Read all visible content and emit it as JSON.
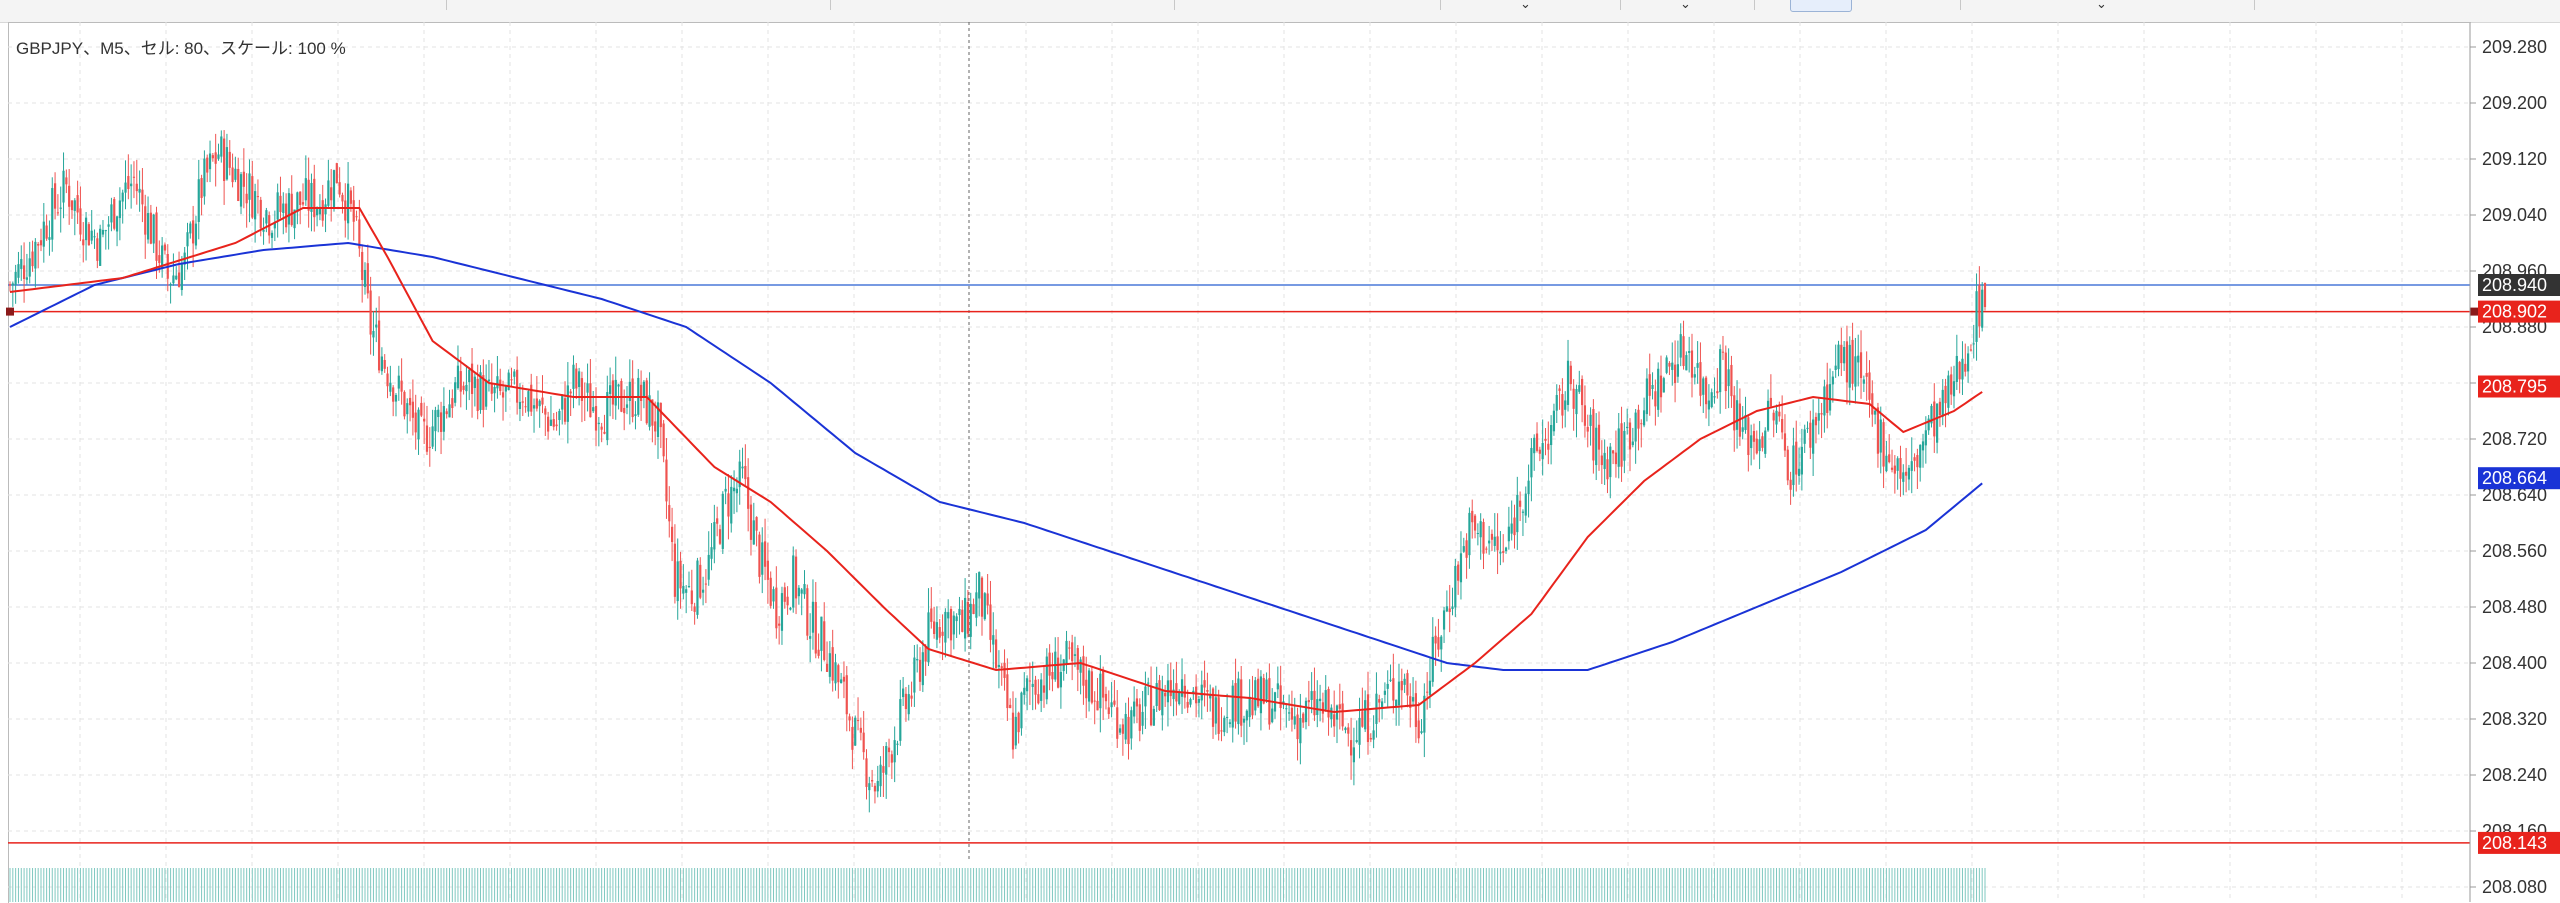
{
  "chart": {
    "title": "GBPJPY、M5、セル: 80、スケール: 100 %"
  },
  "colors": {
    "grid": "#e3e3e3",
    "up_candle": "#26a69a",
    "down_candle": "#ef5350",
    "ma_fast": "#e8231c",
    "ma_slow": "#1a33d6",
    "bid_line": "#e8231c",
    "ask_line": "#4a78d8",
    "price_tag_dark": "#333333",
    "price_tag_red": "#e8231c",
    "price_tag_blue": "#1a33d6",
    "volume": "#7fc8c0"
  },
  "chart_data": {
    "type": "candlestick",
    "symbol": "GBPJPY",
    "timeframe": "M5",
    "y_ticks": [
      "209.280",
      "209.200",
      "209.120",
      "209.040",
      "208.960",
      "208.880",
      "208.800",
      "208.720",
      "208.640",
      "208.560",
      "208.480",
      "208.400",
      "208.320",
      "208.240",
      "208.160",
      "208.080"
    ],
    "ylim": [
      208.08,
      209.28
    ],
    "price_tags": [
      {
        "label": "208.940",
        "value": 208.94,
        "style": "dark"
      },
      {
        "label": "208.902",
        "value": 208.902,
        "style": "red"
      },
      {
        "label": "208.795",
        "value": 208.795,
        "style": "red"
      },
      {
        "label": "208.664",
        "value": 208.664,
        "style": "blue"
      },
      {
        "label": "208.143",
        "value": 208.143,
        "style": "red"
      }
    ],
    "horizontal_lines": [
      {
        "value": 208.94,
        "color": "ask"
      },
      {
        "value": 208.902,
        "color": "bid"
      },
      {
        "value": 208.143,
        "color": "bid"
      }
    ],
    "close_anchors": [
      [
        0,
        208.94
      ],
      [
        8,
        208.99
      ],
      [
        14,
        209.04
      ],
      [
        20,
        209.08
      ],
      [
        26,
        209.03
      ],
      [
        32,
        209.0
      ],
      [
        38,
        209.06
      ],
      [
        44,
        209.09
      ],
      [
        50,
        209.02
      ],
      [
        56,
        208.95
      ],
      [
        62,
        208.97
      ],
      [
        68,
        209.08
      ],
      [
        74,
        209.13
      ],
      [
        80,
        209.1
      ],
      [
        86,
        209.07
      ],
      [
        92,
        209.04
      ],
      [
        98,
        209.05
      ],
      [
        104,
        209.06
      ],
      [
        110,
        209.06
      ],
      [
        116,
        209.1
      ],
      [
        122,
        209.03
      ],
      [
        128,
        208.88
      ],
      [
        134,
        208.82
      ],
      [
        140,
        208.77
      ],
      [
        146,
        208.72
      ],
      [
        152,
        208.75
      ],
      [
        158,
        208.79
      ],
      [
        164,
        208.8
      ],
      [
        170,
        208.78
      ],
      [
        176,
        208.78
      ],
      [
        182,
        208.79
      ],
      [
        188,
        208.76
      ],
      [
        194,
        208.74
      ],
      [
        200,
        208.8
      ],
      [
        206,
        208.77
      ],
      [
        212,
        208.76
      ],
      [
        218,
        208.78
      ],
      [
        224,
        208.78
      ],
      [
        230,
        208.74
      ],
      [
        236,
        208.52
      ],
      [
        242,
        208.5
      ],
      [
        248,
        208.54
      ],
      [
        254,
        208.63
      ],
      [
        260,
        208.66
      ],
      [
        266,
        208.55
      ],
      [
        272,
        208.48
      ],
      [
        278,
        208.52
      ],
      [
        284,
        208.46
      ],
      [
        290,
        208.42
      ],
      [
        296,
        208.35
      ],
      [
        302,
        208.27
      ],
      [
        308,
        208.22
      ],
      [
        314,
        208.3
      ],
      [
        320,
        208.36
      ],
      [
        326,
        208.44
      ],
      [
        332,
        208.47
      ],
      [
        338,
        208.45
      ],
      [
        344,
        208.5
      ],
      [
        350,
        208.4
      ],
      [
        356,
        208.3
      ],
      [
        362,
        208.37
      ],
      [
        368,
        208.38
      ],
      [
        374,
        208.4
      ],
      [
        380,
        208.38
      ],
      [
        386,
        208.36
      ],
      [
        392,
        208.33
      ],
      [
        398,
        208.31
      ],
      [
        404,
        208.34
      ],
      [
        410,
        208.36
      ],
      [
        416,
        208.38
      ],
      [
        422,
        208.35
      ],
      [
        428,
        208.33
      ],
      [
        434,
        208.35
      ],
      [
        440,
        208.34
      ],
      [
        446,
        208.35
      ],
      [
        452,
        208.33
      ],
      [
        458,
        208.32
      ],
      [
        464,
        208.34
      ],
      [
        470,
        208.32
      ],
      [
        476,
        208.3
      ],
      [
        482,
        208.32
      ],
      [
        488,
        208.35
      ],
      [
        494,
        208.38
      ],
      [
        500,
        208.32
      ],
      [
        506,
        208.42
      ],
      [
        512,
        208.51
      ],
      [
        518,
        208.59
      ],
      [
        524,
        208.58
      ],
      [
        530,
        208.55
      ],
      [
        536,
        208.64
      ],
      [
        542,
        208.7
      ],
      [
        548,
        208.74
      ],
      [
        554,
        208.81
      ],
      [
        560,
        208.73
      ],
      [
        566,
        208.69
      ],
      [
        572,
        208.71
      ],
      [
        578,
        208.76
      ],
      [
        584,
        208.79
      ],
      [
        590,
        208.83
      ],
      [
        596,
        208.85
      ],
      [
        602,
        208.78
      ],
      [
        608,
        208.84
      ],
      [
        614,
        208.73
      ],
      [
        620,
        208.72
      ],
      [
        626,
        208.76
      ],
      [
        632,
        208.68
      ],
      [
        638,
        208.72
      ],
      [
        644,
        208.78
      ],
      [
        650,
        208.84
      ],
      [
        656,
        208.81
      ],
      [
        662,
        208.74
      ],
      [
        668,
        208.69
      ],
      [
        674,
        208.66
      ],
      [
        680,
        208.73
      ],
      [
        686,
        208.76
      ],
      [
        692,
        208.82
      ],
      [
        698,
        208.9
      ],
      [
        701,
        208.94
      ]
    ],
    "ma_fast": [
      [
        0,
        208.93
      ],
      [
        40,
        208.95
      ],
      [
        80,
        209.0
      ],
      [
        104,
        209.05
      ],
      [
        124,
        209.05
      ],
      [
        134,
        208.98
      ],
      [
        150,
        208.86
      ],
      [
        170,
        208.8
      ],
      [
        200,
        208.78
      ],
      [
        226,
        208.78
      ],
      [
        250,
        208.68
      ],
      [
        270,
        208.63
      ],
      [
        290,
        208.56
      ],
      [
        310,
        208.48
      ],
      [
        326,
        208.42
      ],
      [
        350,
        208.39
      ],
      [
        380,
        208.4
      ],
      [
        410,
        208.36
      ],
      [
        440,
        208.35
      ],
      [
        470,
        208.33
      ],
      [
        500,
        208.34
      ],
      [
        520,
        208.4
      ],
      [
        540,
        208.47
      ],
      [
        560,
        208.58
      ],
      [
        580,
        208.66
      ],
      [
        600,
        208.72
      ],
      [
        620,
        208.76
      ],
      [
        640,
        208.78
      ],
      [
        660,
        208.77
      ],
      [
        672,
        208.73
      ],
      [
        690,
        208.76
      ],
      [
        701,
        208.79
      ]
    ],
    "ma_slow": [
      [
        0,
        208.88
      ],
      [
        30,
        208.94
      ],
      [
        60,
        208.97
      ],
      [
        90,
        208.99
      ],
      [
        120,
        209.0
      ],
      [
        150,
        208.98
      ],
      [
        180,
        208.95
      ],
      [
        210,
        208.92
      ],
      [
        240,
        208.88
      ],
      [
        270,
        208.8
      ],
      [
        300,
        208.7
      ],
      [
        330,
        208.63
      ],
      [
        360,
        208.6
      ],
      [
        390,
        208.56
      ],
      [
        420,
        208.52
      ],
      [
        450,
        208.48
      ],
      [
        480,
        208.44
      ],
      [
        510,
        208.4
      ],
      [
        530,
        208.39
      ],
      [
        560,
        208.39
      ],
      [
        590,
        208.43
      ],
      [
        620,
        208.48
      ],
      [
        650,
        208.53
      ],
      [
        680,
        208.59
      ],
      [
        701,
        208.66
      ]
    ],
    "volume_bars": "uniform"
  }
}
